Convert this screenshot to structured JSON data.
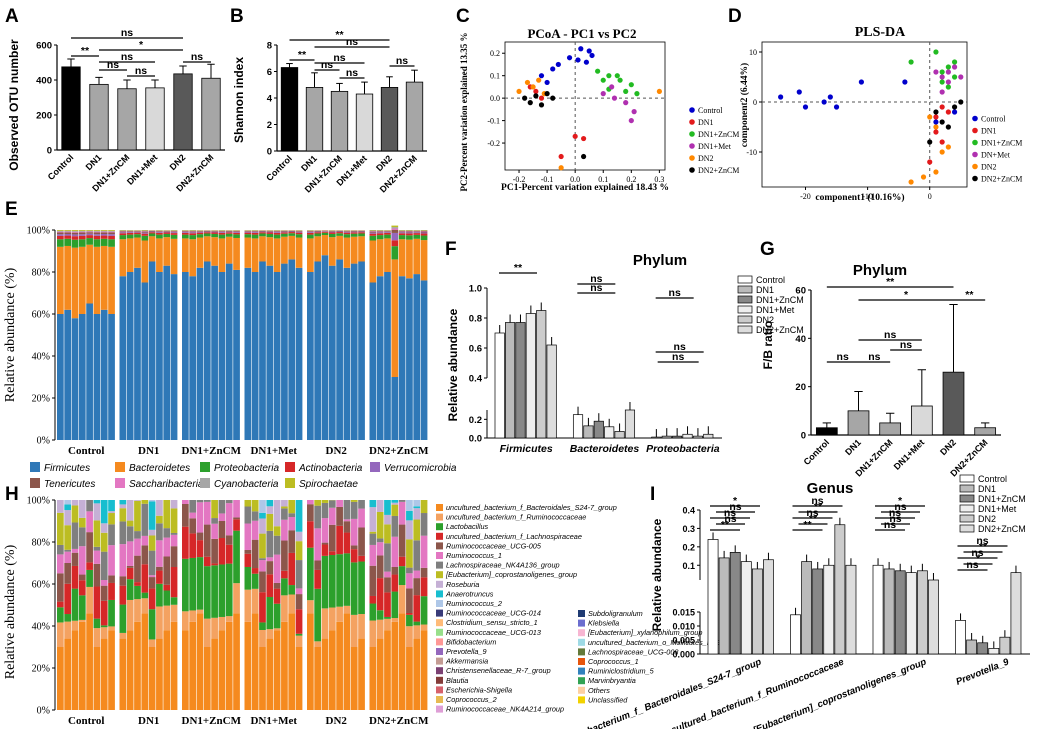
{
  "panel_letters": {
    "A": "A",
    "B": "B",
    "C": "C",
    "D": "D",
    "E": "E",
    "F": "F",
    "G": "G",
    "H": "H",
    "I": "I"
  },
  "group_names": [
    "Control",
    "DN1",
    "DN1+ZnCM",
    "DN1+Met",
    "DN2",
    "DN2+ZnCM"
  ],
  "colors": {
    "firmicutes": "#2f78b7",
    "bacteroidetes": "#f58a1f",
    "proteobacteria": "#2ca02c",
    "actinobacteria": "#d62728",
    "verrucomicrobia": "#9467bd",
    "tenericutes": "#8c564b",
    "saccharibacteria": "#e377c2",
    "cyanobacteria": "#a6a6a6",
    "spirochaetae": "#bcbd22",
    "control": "#0000cc",
    "dn1": "#e31a1c",
    "dn1zn": "#22bb22",
    "dn1met": "#b030b0",
    "dn2": "#ff8800",
    "dn2zn": "#000000"
  },
  "chart_data": [
    {
      "id": "A",
      "type": "bar",
      "title": "",
      "ylabel": "Observed OTU number",
      "ylim": [
        0,
        600
      ],
      "yticks": [
        "0",
        "200",
        "400",
        "600"
      ],
      "categories": [
        "Control",
        "DN1",
        "DN1+ZnCM",
        "DN1+Met",
        "DN2",
        "DN2+ZnCM"
      ],
      "values": [
        475,
        375,
        350,
        355,
        435,
        410
      ],
      "errors": [
        45,
        40,
        50,
        45,
        45,
        80
      ],
      "bar_colors": [
        "#000000",
        "#a6a6a6",
        "#a6a6a6",
        "#d9d9d9",
        "#595959",
        "#a6a6a6"
      ],
      "annotations": [
        "**",
        "ns",
        "ns",
        "ns",
        "*",
        "ns",
        "ns"
      ]
    },
    {
      "id": "B",
      "type": "bar",
      "title": "",
      "ylabel": "Shannon index",
      "ylim": [
        0,
        8
      ],
      "yticks": [
        "0",
        "2",
        "4",
        "6",
        "8"
      ],
      "categories": [
        "Control",
        "DN1",
        "DN1+ZnCM",
        "DN1+Met",
        "DN2",
        "DN2+ZnCM"
      ],
      "values": [
        6.3,
        4.8,
        4.5,
        4.3,
        4.8,
        5.2
      ],
      "errors": [
        0.3,
        1.1,
        0.6,
        0.9,
        0.8,
        0.9
      ],
      "bar_colors": [
        "#000000",
        "#a6a6a6",
        "#a6a6a6",
        "#d9d9d9",
        "#595959",
        "#a6a6a6"
      ],
      "annotations": [
        "**",
        "ns",
        "ns",
        "ns",
        "**",
        "ns",
        "ns"
      ]
    },
    {
      "id": "C",
      "type": "scatter",
      "title": "PCoA - PC1 vs PC2",
      "xlabel": "PC1-Percent variation explained 18.43 %",
      "ylabel": "PC2-Percent variation explained 13.35 %",
      "xlim": [
        -0.25,
        0.32
      ],
      "ylim": [
        -0.32,
        0.25
      ],
      "xticks": [
        "-0.2",
        "-0.1",
        "0.0",
        "0.1",
        "0.2",
        "0.3"
      ],
      "yticks": [
        "0.2",
        "0.1",
        "0.0",
        "-0.1",
        "-0.2"
      ],
      "legend": [
        "Control",
        "DN1",
        "DN1+ZnCM",
        "DN1+Met",
        "DN2",
        "DN2+ZnCM"
      ],
      "series": [
        {
          "name": "Control",
          "points": [
            [
              -0.12,
              0.1
            ],
            [
              -0.08,
              0.13
            ],
            [
              -0.06,
              0.15
            ],
            [
              -0.1,
              0.07
            ],
            [
              0.02,
              0.22
            ],
            [
              0.05,
              0.21
            ],
            [
              0.06,
              0.19
            ],
            [
              0.01,
              0.17
            ],
            [
              -0.02,
              0.18
            ],
            [
              0.04,
              0.16
            ]
          ]
        },
        {
          "name": "DN1",
          "points": [
            [
              -0.14,
              0.03
            ],
            [
              -0.16,
              0.05
            ],
            [
              -0.12,
              0.0
            ],
            [
              0.0,
              -0.17
            ],
            [
              0.03,
              -0.18
            ],
            [
              -0.05,
              -0.26
            ]
          ]
        },
        {
          "name": "DN1+ZnCM",
          "points": [
            [
              0.08,
              0.12
            ],
            [
              0.12,
              0.1
            ],
            [
              0.16,
              0.08
            ],
            [
              0.2,
              0.06
            ],
            [
              0.18,
              0.03
            ],
            [
              0.12,
              0.04
            ],
            [
              0.15,
              0.1
            ],
            [
              0.22,
              0.02
            ],
            [
              0.1,
              0.08
            ]
          ]
        },
        {
          "name": "DN1+Met",
          "points": [
            [
              0.1,
              0.02
            ],
            [
              0.14,
              0.0
            ],
            [
              0.18,
              -0.02
            ],
            [
              0.21,
              -0.06
            ],
            [
              0.2,
              -0.1
            ],
            [
              0.13,
              0.05
            ]
          ]
        },
        {
          "name": "DN2",
          "points": [
            [
              -0.2,
              0.03
            ],
            [
              -0.17,
              0.07
            ],
            [
              -0.15,
              0.05
            ],
            [
              -0.13,
              0.08
            ],
            [
              -0.11,
              0.02
            ],
            [
              -0.05,
              -0.31
            ],
            [
              0.3,
              0.03
            ]
          ]
        },
        {
          "name": "DN2+ZnCM",
          "points": [
            [
              -0.18,
              0.0
            ],
            [
              -0.16,
              -0.02
            ],
            [
              -0.14,
              0.01
            ],
            [
              -0.12,
              -0.03
            ],
            [
              -0.1,
              0.02
            ],
            [
              -0.08,
              0.0
            ],
            [
              0.03,
              -0.26
            ]
          ]
        }
      ]
    },
    {
      "id": "D",
      "type": "scatter",
      "title": "PLS-DA",
      "xlabel": "component1 (10.16%)",
      "ylabel": "component2 (6.44%)",
      "xlim": [
        -27,
        6
      ],
      "ylim": [
        -17,
        12
      ],
      "xticks": [
        "-20",
        "-10",
        "0"
      ],
      "yticks": [
        "10",
        "0",
        "-10"
      ],
      "legend": [
        "Control",
        "DN1",
        "DN1+ZnCM",
        "DN+Met",
        "DN2",
        "DN2+ZnCM"
      ],
      "series": [
        {
          "name": "Control",
          "points": [
            [
              -24,
              1
            ],
            [
              -21,
              2
            ],
            [
              -20,
              -1
            ],
            [
              -17,
              0
            ],
            [
              -16,
              1
            ],
            [
              -15,
              -1
            ],
            [
              -11,
              4
            ],
            [
              -4,
              4
            ],
            [
              1,
              -4
            ],
            [
              4,
              -2
            ]
          ]
        },
        {
          "name": "DN1",
          "points": [
            [
              1,
              -3
            ],
            [
              2,
              -1
            ],
            [
              3,
              -2
            ],
            [
              1,
              -6
            ],
            [
              2,
              -8
            ],
            [
              0,
              -12
            ]
          ]
        },
        {
          "name": "DN1+ZnCM",
          "points": [
            [
              -3,
              8
            ],
            [
              1,
              10
            ],
            [
              2,
              6
            ],
            [
              3,
              7
            ],
            [
              4,
              5
            ],
            [
              2,
              4
            ],
            [
              3,
              3
            ],
            [
              4,
              8
            ]
          ]
        },
        {
          "name": "DN+Met",
          "points": [
            [
              1,
              6
            ],
            [
              2,
              5
            ],
            [
              3,
              6
            ],
            [
              4,
              7
            ],
            [
              5,
              5
            ],
            [
              2,
              2
            ],
            [
              3,
              4
            ]
          ]
        },
        {
          "name": "DN2",
          "points": [
            [
              0,
              -3
            ],
            [
              1,
              -5
            ],
            [
              2,
              -10
            ],
            [
              1,
              -14
            ],
            [
              -1,
              -15
            ],
            [
              -3,
              -16
            ],
            [
              3,
              -9
            ]
          ]
        },
        {
          "name": "DN2+ZnCM",
          "points": [
            [
              1,
              -2
            ],
            [
              2,
              -4
            ],
            [
              3,
              -5
            ],
            [
              4,
              -1
            ],
            [
              5,
              0
            ],
            [
              0,
              -8
            ]
          ]
        }
      ]
    },
    {
      "id": "E",
      "type": "bar",
      "stacked": true,
      "title": "",
      "ylabel": "Relative abundance (%)",
      "ylim": [
        0,
        100
      ],
      "yticks": [
        "0%",
        "20%",
        "40%",
        "60%",
        "80%",
        "100%"
      ],
      "categories": [
        "Control",
        "DN1",
        "DN1+ZnCM",
        "DN1+Met",
        "DN2",
        "DN2+ZnCM"
      ],
      "legend": [
        "Firmicutes",
        "Bacteroidetes",
        "Proteobacteria",
        "Actinobacteria",
        "Verrucomicrobia",
        "Tenericutes",
        "Saccharibacteria",
        "Cyanobacteria",
        "Spirochaetae"
      ],
      "samples_per_group": 8,
      "firmicutes_per_sample": [
        [
          60,
          62,
          58,
          60,
          65,
          60,
          62,
          60
        ],
        [
          78,
          80,
          82,
          75,
          85,
          80,
          83,
          79
        ],
        [
          80,
          78,
          82,
          85,
          83,
          80,
          84,
          81
        ],
        [
          82,
          80,
          85,
          83,
          80,
          84,
          86,
          82
        ],
        [
          80,
          85,
          88,
          83,
          86,
          82,
          84,
          85
        ],
        [
          75,
          78,
          80,
          30,
          78,
          77,
          79,
          76
        ]
      ]
    },
    {
      "id": "F",
      "type": "bar",
      "title": "Phylum",
      "ylabel": "Relative abundance",
      "ylim": [
        0,
        1.0
      ],
      "axis_break": [
        0.3,
        0.4
      ],
      "yticks": [
        "0.0",
        "0.1",
        "0.2",
        "0.3",
        "0.4",
        "0.5",
        "0.6",
        "0.7",
        "0.8",
        "0.9",
        "1.0"
      ],
      "categories": [
        "Firmicutes",
        "Bacteroidetes",
        "Proteobacteria"
      ],
      "series": [
        {
          "name": "Control",
          "values": [
            0.7,
            0.25,
            0.01
          ]
        },
        {
          "name": "DN1",
          "values": [
            0.77,
            0.13,
            0.02
          ]
        },
        {
          "name": "DN1+ZnCM",
          "values": [
            0.77,
            0.18,
            0.02
          ]
        },
        {
          "name": "DN1+Met",
          "values": [
            0.83,
            0.12,
            0.04
          ]
        },
        {
          "name": "DN2",
          "values": [
            0.85,
            0.07,
            0.02
          ]
        },
        {
          "name": "DN2+ZnCM",
          "values": [
            0.62,
            0.3,
            0.04
          ]
        }
      ],
      "annotations": [
        "**",
        "ns",
        "ns",
        "ns",
        "ns",
        "**",
        "**",
        "ns",
        "ns",
        "ns",
        "**",
        "ns",
        "ns",
        "ns",
        "ns",
        "ns",
        "ns"
      ]
    },
    {
      "id": "G",
      "type": "bar",
      "title": "Phylum",
      "ylabel": "F/B ratio",
      "ylim": [
        0,
        60
      ],
      "yticks": [
        "0",
        "20",
        "40",
        "60"
      ],
      "categories": [
        "Control",
        "DN1",
        "DN1+ZnCM",
        "DN1+Met",
        "DN2",
        "DN2+ZnCM"
      ],
      "values": [
        3,
        10,
        5,
        12,
        26,
        3
      ],
      "errors": [
        2,
        8,
        4,
        15,
        28,
        2
      ],
      "bar_colors": [
        "#000000",
        "#a6a6a6",
        "#a6a6a6",
        "#d9d9d9",
        "#595959",
        "#a6a6a6"
      ],
      "annotations": [
        "**",
        "*",
        "**",
        "ns",
        "ns",
        "ns",
        "ns"
      ]
    },
    {
      "id": "H",
      "type": "bar",
      "stacked": true,
      "title": "",
      "ylabel": "Relative abundance (%)",
      "ylim": [
        0,
        100
      ],
      "yticks": [
        "0%",
        "20%",
        "40%",
        "60%",
        "80%",
        "100%"
      ],
      "categories": [
        "Control",
        "DN1",
        "DN1+ZnCM",
        "DN1+Met",
        "DN2",
        "DN2+ZnCM"
      ],
      "legend_col1": [
        "uncultured_bacterium_f_Bacteroidales_S24-7_group",
        "uncultured_bacterium_f_Ruminococcaceae",
        "Lactobacillus",
        "uncultured_bacterium_f_Lachnospiraceae",
        "Ruminococcaceae_UCG-005",
        "Ruminococcus_1",
        "Lachnospiraceae_NK4A136_group",
        "[Eubacterium]_coprostanoligenes_group",
        "Roseburia",
        "Anaerotruncus",
        "Ruminococcus_2",
        "Ruminococcaceae_UCG-014",
        "Clostridium_sensu_stricto_1",
        "Ruminococcaceae_UCG-013",
        "Bifidobacterium",
        "Prevotella_9",
        "Akkermansia",
        "Christensenellaceae_R-7_group",
        "Blautia",
        "Escherichia-Shigella",
        "Coprococcus_2",
        "Ruminococcaceae_NK4A214_group"
      ],
      "legend_col2": [
        "Subdoligranulum",
        "Klebsiella",
        "[Eubacterium]_xylanophilum_group",
        "uncultured_bacterium_o_Mollicutes_RF9",
        "Lachnospiraceae_UCG-008",
        "Coprococcus_1",
        "Ruminiclostridium_5",
        "Marvinbryantia",
        "Others",
        "Unclassified"
      ],
      "legend_col1_colors": [
        "#f58a1f",
        "#f4a261",
        "#2ca02c",
        "#d62728",
        "#8c564b",
        "#e377c2",
        "#7f7f7f",
        "#bcbd22",
        "#c5b0d5",
        "#17becf",
        "#aec7e8",
        "#393b79",
        "#ffbb78",
        "#98df8a",
        "#ff9896",
        "#9467bd",
        "#c49c94",
        "#7b4173",
        "#843c39",
        "#d6616b",
        "#e7ba52",
        "#de9ed6"
      ],
      "legend_col2_colors": [
        "#1f3b73",
        "#6b6ecf",
        "#f7b6d2",
        "#9edae5",
        "#637939",
        "#e6550d",
        "#3182bd",
        "#31a354",
        "#fdd0a2",
        "#f2d200"
      ]
    },
    {
      "id": "I",
      "type": "bar",
      "title": "Genus",
      "ylabel": "Relative abundance",
      "categories": [
        "uncultured_bacterium_f_ Bacteroidales_S24-7_group",
        "uncultured_bacterium_f_Ruminococcaceae",
        "[Eubacterium]_coprostanoligenes_group",
        "Prevotella_9"
      ],
      "axis_break": [
        0.015,
        0.02
      ],
      "yticks": [
        "0.000",
        "0.005",
        "0.010",
        "0.015",
        "0.1",
        "0.2",
        "0.3",
        "0.4"
      ],
      "series": [
        {
          "name": "Control",
          "values": [
            0.24,
            0.014,
            0.1,
            0.012
          ]
        },
        {
          "name": "DN1",
          "values": [
            0.14,
            0.12,
            0.08,
            0.005
          ]
        },
        {
          "name": "DN1+ZnCM",
          "values": [
            0.17,
            0.08,
            0.07,
            0.004
          ]
        },
        {
          "name": "DN1+Met",
          "values": [
            0.12,
            0.1,
            0.06,
            0.002
          ]
        },
        {
          "name": "DN2",
          "values": [
            0.08,
            0.32,
            0.07,
            0.006
          ]
        },
        {
          "name": "DN2+ZnCM",
          "values": [
            0.13,
            0.1,
            0.02,
            0.06
          ]
        }
      ],
      "annotations": [
        "**",
        "ns",
        "ns",
        "ns",
        "*",
        "**",
        "**",
        "ns",
        "**",
        "ns",
        "ns",
        "ns",
        "ns",
        "ns",
        "*",
        "ns",
        "*",
        "ns",
        "**",
        "ns",
        "ns",
        "ns"
      ]
    }
  ]
}
